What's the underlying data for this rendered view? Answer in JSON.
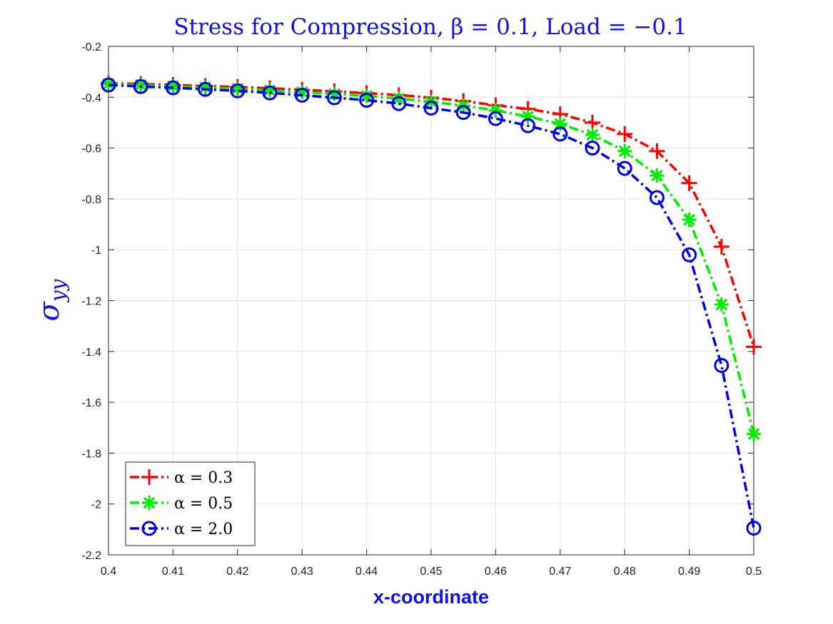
{
  "chart_data": {
    "type": "line",
    "title": "Stress for Compression, β = 0.1, Load = −0.1",
    "xlabel": "x-coordinate",
    "ylabel": "σyy",
    "xlim": [
      0.4,
      0.5
    ],
    "ylim": [
      -2.2,
      -0.2
    ],
    "xticks": [
      "0.4",
      "0.41",
      "0.42",
      "0.43",
      "0.44",
      "0.45",
      "0.46",
      "0.47",
      "0.48",
      "0.49",
      "0.5"
    ],
    "yticks": [
      "-0.2",
      "-0.4",
      "-0.6",
      "-0.8",
      "-1",
      "-1.2",
      "-1.4",
      "-1.6",
      "-1.8",
      "-2",
      "-2.2"
    ],
    "grid": true,
    "legend_position": "bottom-left",
    "x": [
      0.4,
      0.405,
      0.41,
      0.415,
      0.42,
      0.425,
      0.43,
      0.435,
      0.44,
      0.445,
      0.45,
      0.455,
      0.46,
      0.465,
      0.47,
      0.475,
      0.48,
      0.485,
      0.49,
      0.495,
      0.5
    ],
    "series": [
      {
        "name": "α = 0.3",
        "color": "#ff0000",
        "marker": "plus",
        "values": [
          -0.345,
          -0.348,
          -0.352,
          -0.356,
          -0.36,
          -0.365,
          -0.371,
          -0.377,
          -0.384,
          -0.392,
          -0.402,
          -0.415,
          -0.432,
          -0.446,
          -0.467,
          -0.5,
          -0.545,
          -0.612,
          -0.738,
          -0.988,
          -1.382
        ]
      },
      {
        "name": "α = 0.5",
        "color": "#00ee00",
        "marker": "asterisk",
        "values": [
          -0.348,
          -0.352,
          -0.357,
          -0.362,
          -0.367,
          -0.373,
          -0.38,
          -0.387,
          -0.395,
          -0.405,
          -0.418,
          -0.433,
          -0.452,
          -0.476,
          -0.505,
          -0.548,
          -0.612,
          -0.708,
          -0.882,
          -1.215,
          -1.725
        ]
      },
      {
        "name": "α = 2.0",
        "color": "#0000ee",
        "marker": "circle",
        "values": [
          -0.352,
          -0.358,
          -0.363,
          -0.369,
          -0.375,
          -0.383,
          -0.392,
          -0.402,
          -0.412,
          -0.425,
          -0.443,
          -0.46,
          -0.484,
          -0.512,
          -0.545,
          -0.6,
          -0.68,
          -0.795,
          -1.02,
          -1.455,
          -2.095
        ]
      }
    ]
  }
}
